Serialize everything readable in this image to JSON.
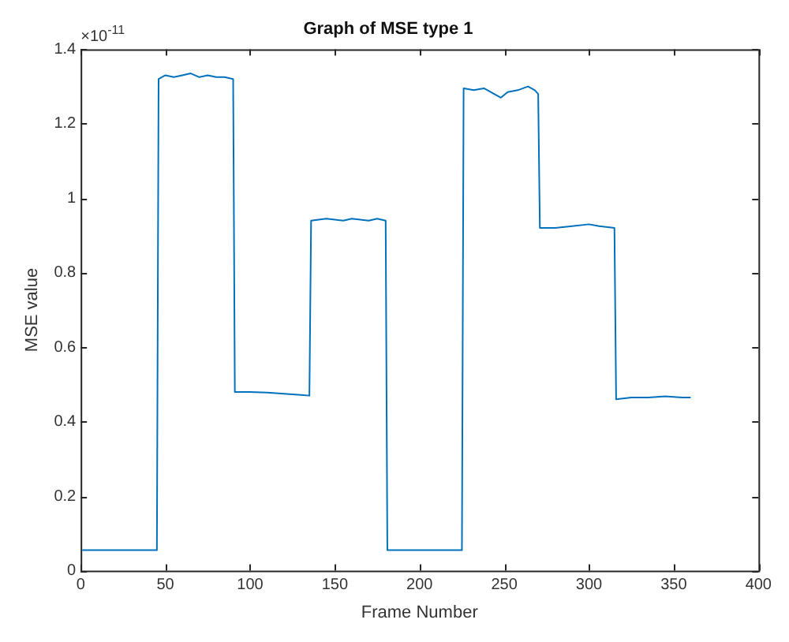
{
  "chart_data": {
    "type": "line",
    "title": "Graph of MSE type 1",
    "xlabel": "Frame Number",
    "ylabel": "MSE value",
    "annotations": [
      "×10$^{-11}$"
    ],
    "xlim": [
      0,
      400
    ],
    "xticks": [
      0,
      50,
      100,
      150,
      200,
      250,
      300,
      350,
      400
    ],
    "ylim": [
      0,
      1.4
    ],
    "yticks": [
      0,
      0.2,
      0.4,
      0.6,
      0.8,
      1,
      1.2,
      1.4
    ],
    "marker": "none",
    "line_style": "solid",
    "series": [
      {
        "color": "#0072bd",
        "x": [
          1,
          45,
          46,
          50,
          55,
          60,
          65,
          70,
          75,
          80,
          85,
          90,
          91,
          100,
          110,
          120,
          130,
          135,
          136,
          145,
          155,
          160,
          170,
          175,
          180,
          181,
          225,
          226,
          232,
          238,
          244,
          248,
          252,
          258,
          264,
          268,
          270,
          271,
          280,
          290,
          300,
          306,
          315,
          316,
          325,
          335,
          345,
          355,
          360
        ],
        "values": [
          0.055,
          0.055,
          1.32,
          1.33,
          1.325,
          1.33,
          1.335,
          1.325,
          1.33,
          1.325,
          1.325,
          1.32,
          0.48,
          0.48,
          0.478,
          0.475,
          0.472,
          0.47,
          0.94,
          0.945,
          0.94,
          0.945,
          0.94,
          0.945,
          0.94,
          0.055,
          0.055,
          1.295,
          1.29,
          1.295,
          1.28,
          1.27,
          1.285,
          1.29,
          1.3,
          1.29,
          1.28,
          0.92,
          0.92,
          0.925,
          0.93,
          0.925,
          0.92,
          0.46,
          0.465,
          0.465,
          0.468,
          0.465,
          0.465
        ]
      }
    ]
  }
}
